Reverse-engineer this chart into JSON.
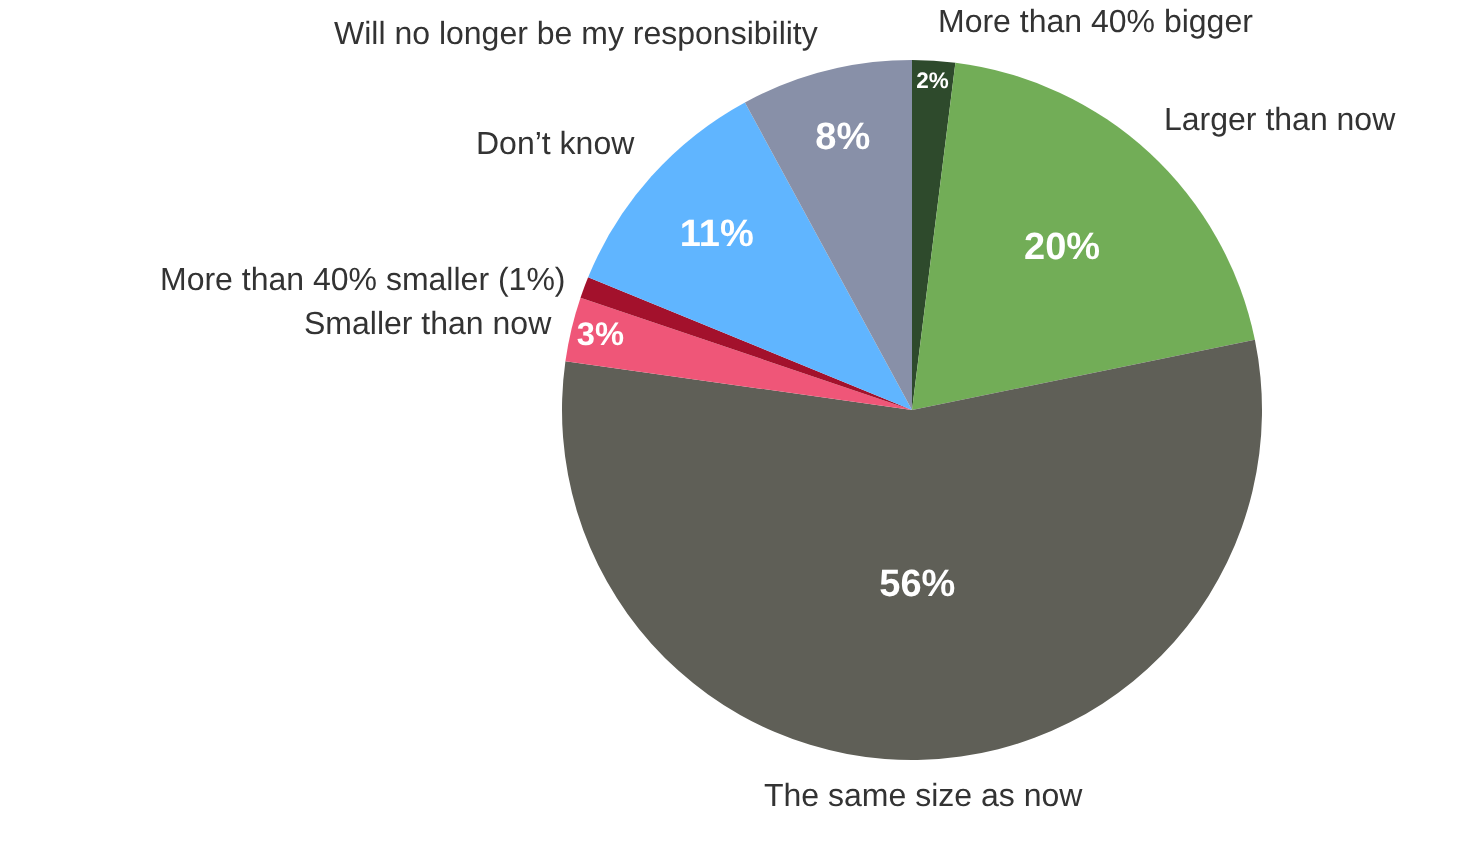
{
  "chart_data": {
    "type": "pie",
    "categories": [
      "More than 40% bigger",
      "Larger than now",
      "The same size as now",
      "Smaller than now",
      "More than 40% smaller (1%)",
      "Don’t know",
      "Will no longer be my responsibility"
    ],
    "values": [
      2,
      20,
      56,
      3,
      1,
      11,
      8
    ],
    "colors": [
      "#2e4a2c",
      "#72ad57",
      "#5f5f57",
      "#ef5678",
      "#a3112c",
      "#60b5ff",
      "#8890a8"
    ],
    "value_labels": [
      "2%",
      "20%",
      "56%",
      "3%",
      null,
      "11%",
      "8%"
    ],
    "legend": false
  }
}
